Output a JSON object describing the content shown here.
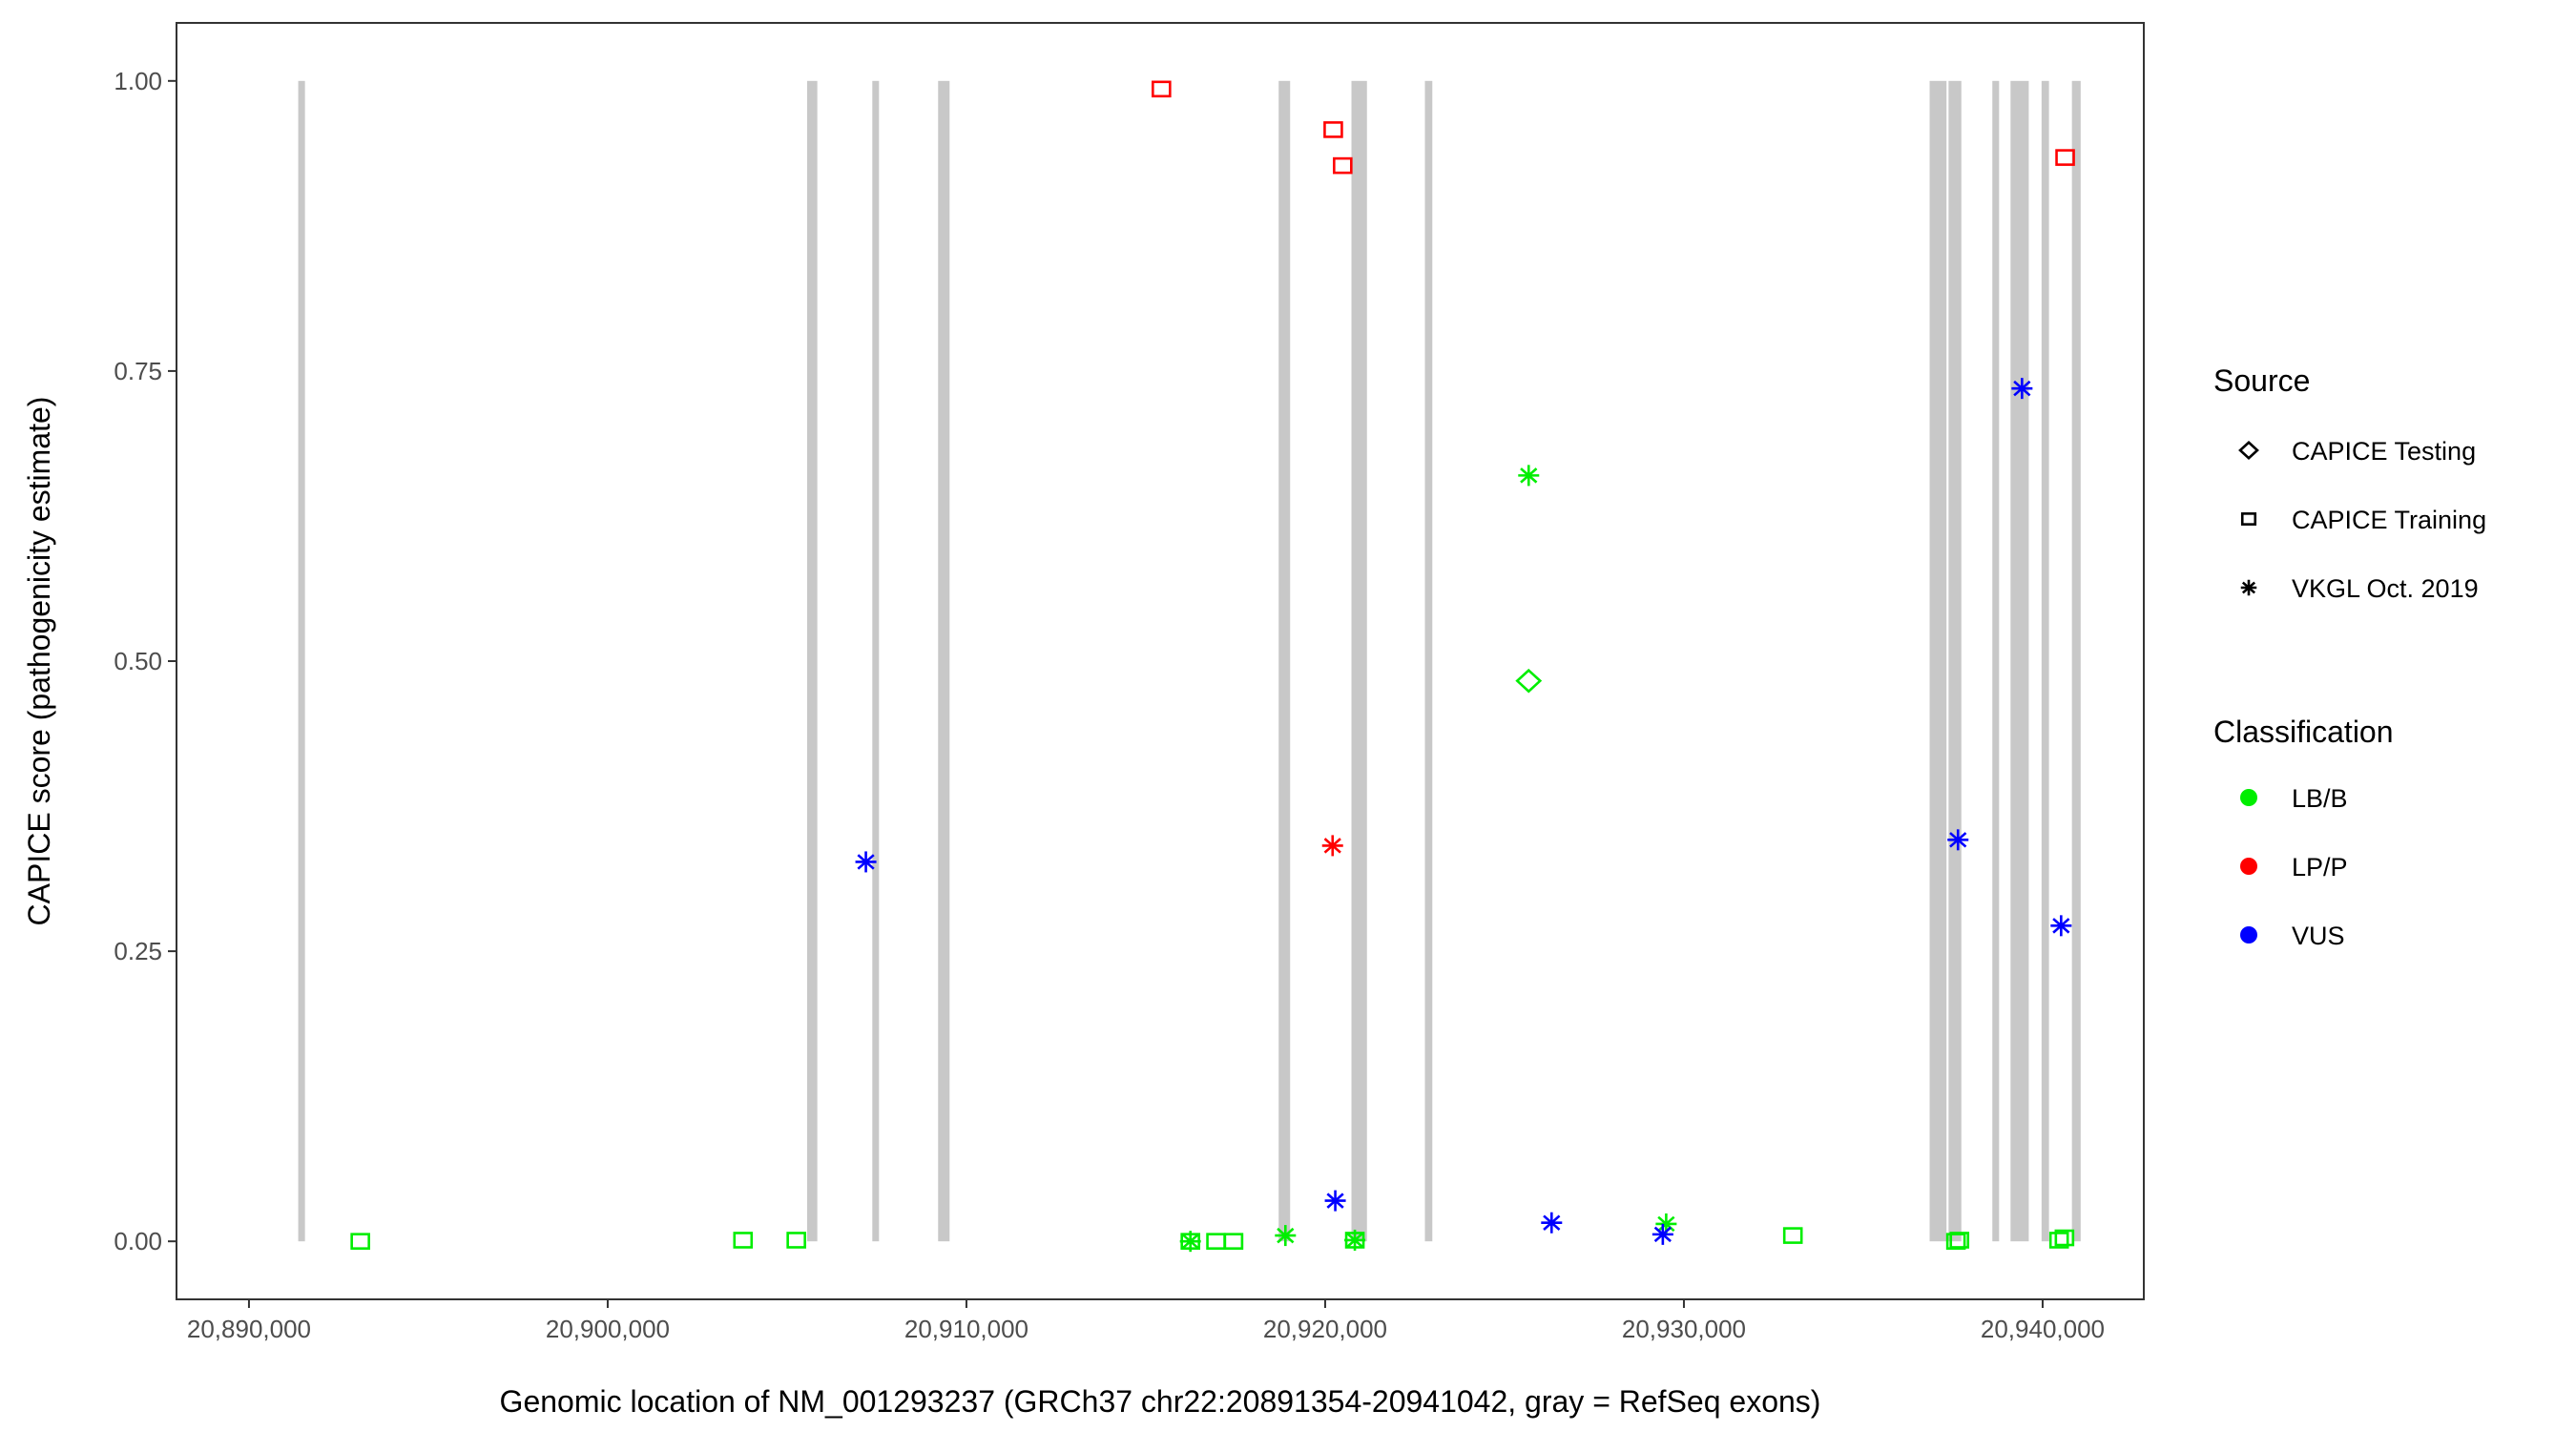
{
  "chart_data": {
    "type": "scatter",
    "title": "",
    "xlabel": "Genomic location of NM_001293237 (GRCh37 chr22:20891354-20941042, gray = RefSeq exons)",
    "ylabel": "CAPICE score (pathogenicity estimate)",
    "xlim": [
      20887980,
      20942820
    ],
    "ylim": [
      -0.05,
      1.05
    ],
    "x_ticks": [
      20890000,
      20900000,
      20910000,
      20920000,
      20930000,
      20940000
    ],
    "x_tick_labels": [
      "20,890,000",
      "20,900,000",
      "20,910,000",
      "20,920,000",
      "20,930,000",
      "20,940,000"
    ],
    "y_ticks": [
      0,
      0.25,
      0.5,
      0.75,
      1.0
    ],
    "y_tick_labels": [
      "0.00",
      "0.25",
      "0.50",
      "0.75",
      "1.00"
    ],
    "grid": false,
    "exon_color": "#C8C8C8",
    "exons": [
      [
        20891373,
        20891561
      ],
      [
        20905560,
        20905843
      ],
      [
        20907404,
        20907535
      ],
      [
        20909210,
        20909530
      ],
      [
        20918704,
        20919023
      ],
      [
        20920733,
        20921165
      ],
      [
        20922780,
        20922987
      ],
      [
        20936850,
        20937320
      ],
      [
        20937377,
        20937734
      ],
      [
        20938598,
        20938786
      ],
      [
        20939105,
        20939613
      ],
      [
        20939970,
        20940177
      ],
      [
        20940816,
        20941060
      ]
    ],
    "legend": {
      "placement": "right",
      "source_title": "Source",
      "source_items": [
        {
          "label": "CAPICE Testing",
          "shape": "diamond"
        },
        {
          "label": "CAPICE Training",
          "shape": "square"
        },
        {
          "label": "VKGL Oct. 2019",
          "shape": "asterisk"
        }
      ],
      "class_title": "Classification",
      "class_items": [
        {
          "label": "LB/B",
          "color": "#00EE00"
        },
        {
          "label": "LP/P",
          "color": "#FF0000"
        },
        {
          "label": "VUS",
          "color": "#0000FF"
        }
      ]
    },
    "points": [
      {
        "x": 20893104,
        "y": 0.0,
        "source": "CAPICE Training",
        "class": "LB/B"
      },
      {
        "x": 20903772,
        "y": 0.001,
        "source": "CAPICE Training",
        "class": "LB/B"
      },
      {
        "x": 20905258,
        "y": 0.001,
        "source": "CAPICE Training",
        "class": "LB/B"
      },
      {
        "x": 20907197,
        "y": 0.327,
        "source": "VKGL Oct. 2019",
        "class": "VUS"
      },
      {
        "x": 20915435,
        "y": 0.993,
        "source": "CAPICE Training",
        "class": "LP/P"
      },
      {
        "x": 20920225,
        "y": 0.958,
        "source": "CAPICE Training",
        "class": "LP/P"
      },
      {
        "x": 20920488,
        "y": 0.927,
        "source": "CAPICE Training",
        "class": "LP/P"
      },
      {
        "x": 20940627,
        "y": 0.934,
        "source": "CAPICE Training",
        "class": "LP/P"
      },
      {
        "x": 20939425,
        "y": 0.735,
        "source": "VKGL Oct. 2019",
        "class": "VUS"
      },
      {
        "x": 20925673,
        "y": 0.66,
        "source": "VKGL Oct. 2019",
        "class": "LB/B"
      },
      {
        "x": 20925673,
        "y": 0.483,
        "source": "CAPICE Testing",
        "class": "LB/B"
      },
      {
        "x": 20920207,
        "y": 0.341,
        "source": "VKGL Oct. 2019",
        "class": "LP/P"
      },
      {
        "x": 20937640,
        "y": 0.346,
        "source": "VKGL Oct. 2019",
        "class": "VUS"
      },
      {
        "x": 20940515,
        "y": 0.272,
        "source": "VKGL Oct. 2019",
        "class": "VUS"
      },
      {
        "x": 20920282,
        "y": 0.035,
        "source": "VKGL Oct. 2019",
        "class": "VUS"
      },
      {
        "x": 20926312,
        "y": 0.016,
        "source": "VKGL Oct. 2019",
        "class": "VUS"
      },
      {
        "x": 20929506,
        "y": 0.015,
        "source": "VKGL Oct. 2019",
        "class": "LB/B"
      },
      {
        "x": 20929412,
        "y": 0.006,
        "source": "VKGL Oct. 2019",
        "class": "VUS"
      },
      {
        "x": 20918892,
        "y": 0.005,
        "source": "VKGL Oct. 2019",
        "class": "LB/B"
      },
      {
        "x": 20916243,
        "y": 0.0,
        "source": "VKGL Oct. 2019",
        "class": "LB/B"
      },
      {
        "x": 20916243,
        "y": 0.0,
        "source": "CAPICE Training",
        "class": "LB/B"
      },
      {
        "x": 20916957,
        "y": 0.0,
        "source": "CAPICE Training",
        "class": "LB/B"
      },
      {
        "x": 20917445,
        "y": 0.0,
        "source": "CAPICE Training",
        "class": "LB/B"
      },
      {
        "x": 20920827,
        "y": 0.001,
        "source": "CAPICE Training",
        "class": "LB/B"
      },
      {
        "x": 20920827,
        "y": 0.001,
        "source": "VKGL Oct. 2019",
        "class": "LB/B"
      },
      {
        "x": 20933038,
        "y": 0.005,
        "source": "CAPICE Training",
        "class": "LB/B"
      },
      {
        "x": 20937584,
        "y": 0.0,
        "source": "CAPICE Training",
        "class": "LB/B"
      },
      {
        "x": 20937680,
        "y": 0.001,
        "source": "CAPICE Training",
        "class": "LB/B"
      },
      {
        "x": 20940458,
        "y": 0.001,
        "source": "CAPICE Training",
        "class": "LB/B"
      },
      {
        "x": 20940608,
        "y": 0.003,
        "source": "CAPICE Training",
        "class": "LB/B"
      }
    ]
  }
}
